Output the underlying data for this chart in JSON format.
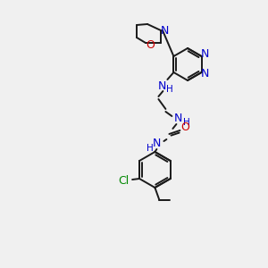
{
  "bg_color": "#f0f0f0",
  "bond_color": "#1a1a1a",
  "nitrogen_color": "#0000cc",
  "oxygen_color": "#cc0000",
  "chlorine_color": "#008800",
  "figsize": [
    3.0,
    3.0
  ],
  "dpi": 100,
  "xlim": [
    0,
    300
  ],
  "ylim": [
    0,
    300
  ]
}
